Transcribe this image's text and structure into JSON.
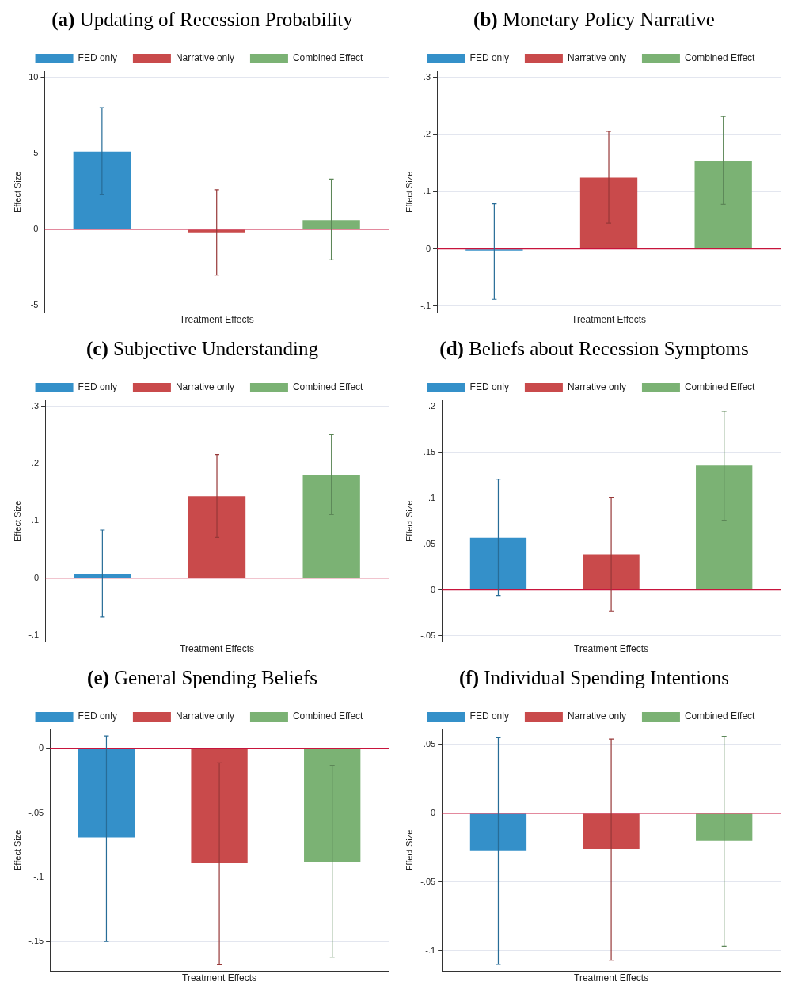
{
  "chart_data": [
    {
      "type": "bar",
      "title": "(a) Updating of Recession Probability",
      "xlabel": "Treatment Effects",
      "ylabel": "Effect Size",
      "categories": [
        null
      ],
      "legend": "top",
      "grid": "y",
      "tick_labels": "y",
      "ylim": [
        -5.5,
        10.4
      ],
      "yticks": [
        -5,
        0,
        5,
        10
      ],
      "ref_lines": [
        {
          "axis": "y",
          "value": 0,
          "color": "#c8143c"
        }
      ],
      "series": [
        {
          "name": "FED only",
          "color": "#3490c9",
          "values": [
            5.1
          ],
          "errors": [
            [
              2.3,
              8.0
            ]
          ]
        },
        {
          "name": "Narrative only",
          "color": "#c94a4b",
          "values": [
            -0.2
          ],
          "errors": [
            [
              -3.0,
              2.6
            ]
          ]
        },
        {
          "name": "Combined Effect",
          "color": "#7bb274",
          "values": [
            0.6
          ],
          "errors": [
            [
              -2.0,
              3.3
            ]
          ]
        }
      ]
    },
    {
      "type": "bar",
      "title": "(b) Monetary Policy Narrative",
      "xlabel": "Treatment Effects",
      "ylabel": "Effect Size",
      "categories": [
        null
      ],
      "legend": "top",
      "grid": "y",
      "tick_labels": "y",
      "ylim": [
        -0.112,
        0.311
      ],
      "yticks": [
        {
          "value": -0.1,
          "label": "-.1"
        },
        0,
        {
          "value": 0.1,
          "label": ".1"
        },
        {
          "value": 0.2,
          "label": ".2"
        },
        {
          "value": 0.3,
          "label": ".3"
        }
      ],
      "ref_lines": [
        {
          "axis": "y",
          "value": 0,
          "color": "#c8143c"
        }
      ],
      "series": [
        {
          "name": "FED only",
          "color": "#3490c9",
          "values": [
            -0.003
          ],
          "errors": [
            [
              -0.088,
              0.079
            ]
          ]
        },
        {
          "name": "Narrative only",
          "color": "#c94a4b",
          "values": [
            0.125
          ],
          "errors": [
            [
              0.045,
              0.206
            ]
          ]
        },
        {
          "name": "Combined Effect",
          "color": "#7bb274",
          "values": [
            0.154
          ],
          "errors": [
            [
              0.078,
              0.232
            ]
          ]
        }
      ]
    },
    {
      "type": "bar",
      "title": "(c) Subjective Understanding",
      "xlabel": "Treatment Effects",
      "ylabel": "Effect Size",
      "categories": [
        null
      ],
      "legend": "top",
      "grid": "y",
      "tick_labels": "y",
      "ylim": [
        -0.112,
        0.311
      ],
      "yticks": [
        {
          "value": -0.1,
          "label": "-.1"
        },
        0,
        {
          "value": 0.1,
          "label": ".1"
        },
        {
          "value": 0.2,
          "label": ".2"
        },
        {
          "value": 0.3,
          "label": ".3"
        }
      ],
      "ref_lines": [
        {
          "axis": "y",
          "value": 0,
          "color": "#c8143c"
        }
      ],
      "series": [
        {
          "name": "FED only",
          "color": "#3490c9",
          "values": [
            0.008
          ],
          "errors": [
            [
              -0.068,
              0.084
            ]
          ]
        },
        {
          "name": "Narrative only",
          "color": "#c94a4b",
          "values": [
            0.143
          ],
          "errors": [
            [
              0.071,
              0.216
            ]
          ]
        },
        {
          "name": "Combined Effect",
          "color": "#7bb274",
          "values": [
            0.181
          ],
          "errors": [
            [
              0.111,
              0.251
            ]
          ]
        }
      ]
    },
    {
      "type": "bar",
      "title": "(d) Beliefs about Recession Symptoms",
      "xlabel": "Treatment Effects",
      "ylabel": "Effect Size",
      "categories": [
        null
      ],
      "legend": "top",
      "grid": "y",
      "tick_labels": "y",
      "ylim": [
        -0.057,
        0.207
      ],
      "yticks": [
        {
          "value": -0.05,
          "label": "-.05"
        },
        0,
        {
          "value": 0.05,
          "label": ".05"
        },
        {
          "value": 0.1,
          "label": ".1"
        },
        {
          "value": 0.15,
          "label": ".15"
        },
        {
          "value": 0.2,
          "label": ".2"
        }
      ],
      "ref_lines": [
        {
          "axis": "y",
          "value": 0,
          "color": "#c8143c"
        }
      ],
      "series": [
        {
          "name": "FED only",
          "color": "#3490c9",
          "values": [
            0.057
          ],
          "errors": [
            [
              -0.006,
              0.121
            ]
          ]
        },
        {
          "name": "Narrative only",
          "color": "#c94a4b",
          "values": [
            0.039
          ],
          "errors": [
            [
              -0.023,
              0.101
            ]
          ]
        },
        {
          "name": "Combined Effect",
          "color": "#7bb274",
          "values": [
            0.136
          ],
          "errors": [
            [
              0.076,
              0.195
            ]
          ]
        }
      ]
    },
    {
      "type": "bar",
      "title": "(e) General Spending Beliefs",
      "xlabel": "Treatment Effects",
      "ylabel": "Effect Size",
      "categories": [
        null
      ],
      "legend": "top",
      "grid": "y",
      "tick_labels": "y",
      "ylim": [
        -0.173,
        0.015
      ],
      "yticks": [
        {
          "value": -0.15,
          "label": "-.15"
        },
        {
          "value": -0.1,
          "label": "-.1"
        },
        {
          "value": -0.05,
          "label": "-.05"
        },
        0
      ],
      "ref_lines": [
        {
          "axis": "y",
          "value": 0,
          "color": "#c8143c"
        }
      ],
      "series": [
        {
          "name": "FED only",
          "color": "#3490c9",
          "values": [
            -0.069
          ],
          "errors": [
            [
              -0.15,
              0.01
            ]
          ]
        },
        {
          "name": "Narrative only",
          "color": "#c94a4b",
          "values": [
            -0.089
          ],
          "errors": [
            [
              -0.168,
              -0.011
            ]
          ]
        },
        {
          "name": "Combined Effect",
          "color": "#7bb274",
          "values": [
            -0.088
          ],
          "errors": [
            [
              -0.162,
              -0.013
            ]
          ]
        }
      ]
    },
    {
      "type": "bar",
      "title": "(f) Individual Spending Intentions",
      "xlabel": "Treatment Effects",
      "ylabel": "Effect Size",
      "categories": [
        null
      ],
      "legend": "top",
      "grid": "y",
      "tick_labels": "y",
      "ylim": [
        -0.115,
        0.061
      ],
      "yticks": [
        {
          "value": -0.1,
          "label": "-.1"
        },
        {
          "value": -0.05,
          "label": "-.05"
        },
        0,
        {
          "value": 0.05,
          "label": ".05"
        }
      ],
      "ref_lines": [
        {
          "axis": "y",
          "value": 0,
          "color": "#c8143c"
        }
      ],
      "series": [
        {
          "name": "FED only",
          "color": "#3490c9",
          "values": [
            -0.027
          ],
          "errors": [
            [
              -0.11,
              0.055
            ]
          ]
        },
        {
          "name": "Narrative only",
          "color": "#c94a4b",
          "values": [
            -0.026
          ],
          "errors": [
            [
              -0.107,
              0.054
            ]
          ]
        },
        {
          "name": "Combined Effect",
          "color": "#7bb274",
          "values": [
            -0.02
          ],
          "errors": [
            [
              -0.097,
              0.056
            ]
          ]
        }
      ]
    }
  ]
}
